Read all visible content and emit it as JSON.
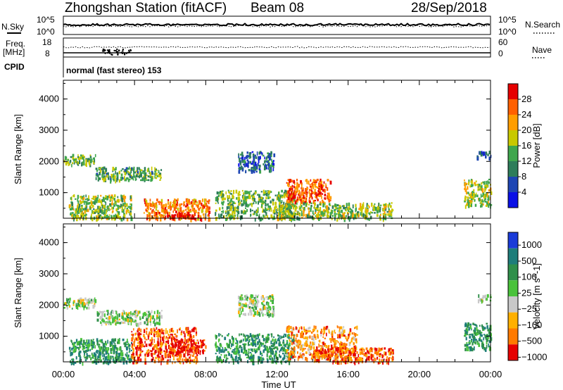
{
  "header": {
    "station": "Zhongshan Station (fitACF)",
    "beam": "Beam 08",
    "date": "28/Sep/2018"
  },
  "strip": {
    "nsky_label": "N.Sky",
    "nsearch_label": "N.Search",
    "noise_top": "10^5",
    "noise_bottom": "10^0",
    "freq_label": "Freq.",
    "freq_unit": "[MHz]",
    "freq_top": "18",
    "freq_bottom": "8",
    "nave_label": "Nave",
    "nave_top": "60",
    "nave_bottom": "0",
    "cpid_label": "CPID",
    "cpid_text": "normal (fast stereo) 153"
  },
  "chart_data": [
    {
      "type": "heatmap",
      "quantity": "Power",
      "ylabel": "Slant Range [km]",
      "colorbar_label": "Power [dB]",
      "ylim": [
        180,
        4600
      ],
      "yticks": [
        "1000",
        "2000",
        "3000",
        "4000"
      ],
      "colorbar_ticks": [
        "4",
        "8",
        "12",
        "16",
        "20",
        "24",
        "28"
      ],
      "colorbar_range": [
        0,
        32
      ],
      "colors": [
        "#0a10e6",
        "#1e46b4",
        "#2e7d5a",
        "#3fa64d",
        "#c8c800",
        "#ff9d00",
        "#ff6000",
        "#e60000"
      ],
      "echo_regions": [
        {
          "t0": 0.0,
          "t1": 1.8,
          "r0": 1900,
          "r1": 2250,
          "level": 0.45
        },
        {
          "t0": 1.8,
          "t1": 5.5,
          "r0": 1420,
          "r1": 1850,
          "level": 0.4
        },
        {
          "t0": 0.3,
          "t1": 3.8,
          "r0": 180,
          "r1": 950,
          "level": 0.5
        },
        {
          "t0": 4.5,
          "t1": 8.2,
          "r0": 180,
          "r1": 820,
          "level": 0.75
        },
        {
          "t0": 5.8,
          "t1": 7.2,
          "r0": 180,
          "r1": 400,
          "level": 0.95
        },
        {
          "t0": 9.8,
          "t1": 11.8,
          "r0": 1700,
          "r1": 2350,
          "level": 0.25
        },
        {
          "t0": 8.5,
          "t1": 13.0,
          "r0": 180,
          "r1": 1100,
          "level": 0.45
        },
        {
          "t0": 12.5,
          "t1": 15.0,
          "r0": 700,
          "r1": 1450,
          "level": 0.8
        },
        {
          "t0": 12.0,
          "t1": 18.5,
          "r0": 180,
          "r1": 700,
          "level": 0.5
        },
        {
          "t0": 22.5,
          "t1": 24.0,
          "r0": 600,
          "r1": 1450,
          "level": 0.55
        },
        {
          "t0": 23.2,
          "t1": 24.0,
          "r0": 2150,
          "r1": 2350,
          "level": 0.2
        }
      ]
    },
    {
      "type": "heatmap",
      "quantity": "Velocity",
      "ylabel": "Slant Range [km]",
      "colorbar_label": "Velocity [m s^-1]",
      "ylim": [
        180,
        4600
      ],
      "yticks": [
        "1000",
        "2000",
        "3000",
        "4000"
      ],
      "colorbar_ticks": [
        "1000",
        "500",
        "100",
        "25",
        "−25",
        "−100",
        "−500",
        "−1000"
      ],
      "colors": [
        "#1a3bd8",
        "#1e7d7a",
        "#2f8f4a",
        "#49c23a",
        "#c8c8c8",
        "#ffb000",
        "#ff7a00",
        "#e60000"
      ],
      "echo_regions": [
        {
          "t0": 0.0,
          "t1": 1.8,
          "r0": 1900,
          "r1": 2250,
          "level": 0.5
        },
        {
          "t0": 1.8,
          "t1": 5.5,
          "r0": 1420,
          "r1": 1850,
          "level": 0.5
        },
        {
          "t0": 0.3,
          "t1": 3.8,
          "r0": 180,
          "r1": 950,
          "level": 0.3
        },
        {
          "t0": 3.8,
          "t1": 7.5,
          "r0": 180,
          "r1": 1300,
          "level": 0.85
        },
        {
          "t0": 6.0,
          "t1": 8.0,
          "r0": 500,
          "r1": 950,
          "level": 0.95
        },
        {
          "t0": 9.8,
          "t1": 11.8,
          "r0": 1700,
          "r1": 2350,
          "level": 0.5
        },
        {
          "t0": 8.5,
          "t1": 13.0,
          "r0": 180,
          "r1": 1100,
          "level": 0.3
        },
        {
          "t0": 12.5,
          "t1": 16.5,
          "r0": 300,
          "r1": 1350,
          "level": 0.75
        },
        {
          "t0": 14.0,
          "t1": 18.5,
          "r0": 180,
          "r1": 650,
          "level": 0.85
        },
        {
          "t0": 22.5,
          "t1": 24.0,
          "r0": 600,
          "r1": 1450,
          "level": 0.3
        },
        {
          "t0": 23.2,
          "t1": 24.0,
          "r0": 2150,
          "r1": 2350,
          "level": 0.5
        }
      ]
    }
  ],
  "xaxis": {
    "label": "Time UT",
    "ticks": [
      "00:00",
      "04:00",
      "08:00",
      "12:00",
      "16:00",
      "20:00",
      "00:00"
    ],
    "range_hours": [
      0,
      24
    ]
  }
}
